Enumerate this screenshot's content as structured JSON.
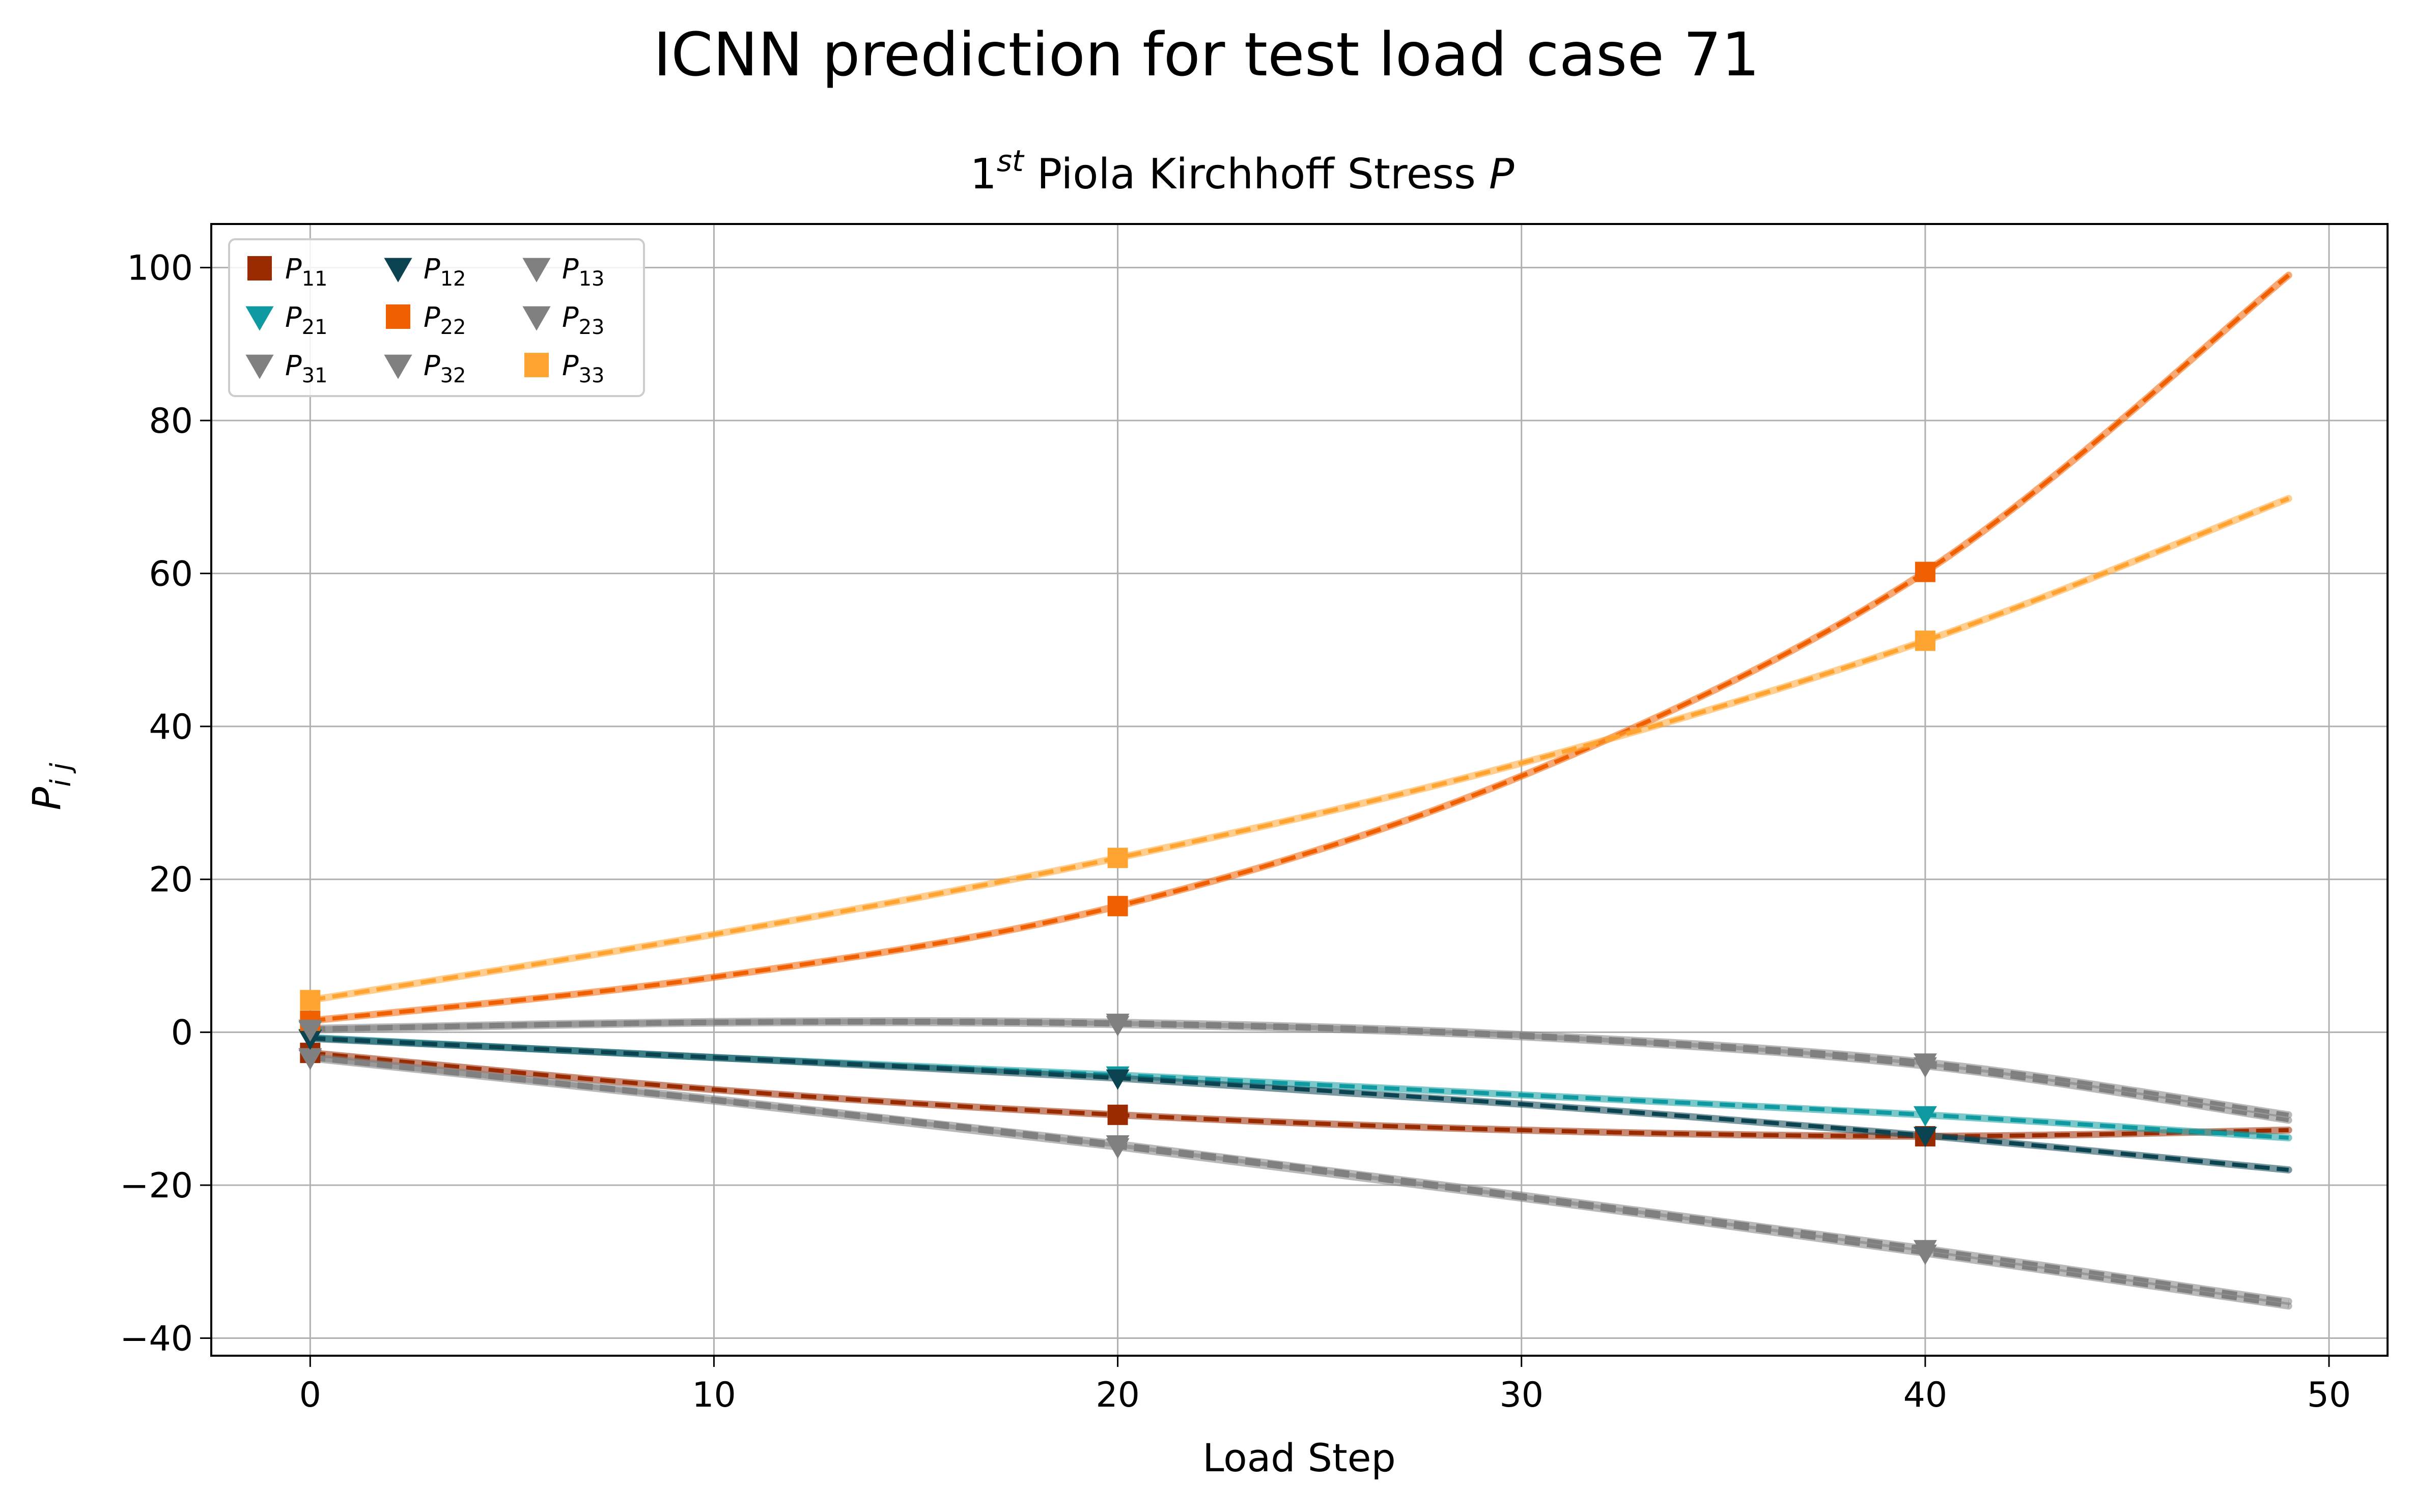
{
  "figure": {
    "suptitle": "ICNN prediction for test load case 71"
  },
  "chart_data": {
    "type": "line",
    "title": {
      "main": "1",
      "sup": "st",
      "rest": " Piola Kirchhoff Stress ",
      "italic": "P"
    },
    "xlabel": "Load Step",
    "ylabel": {
      "main": "P",
      "sub": "i j"
    },
    "xlim": [
      -2.45,
      51.45
    ],
    "ylim": [
      -42.3,
      105.7
    ],
    "xticks": [
      0,
      10,
      20,
      30,
      40,
      50
    ],
    "yticks": [
      -40,
      -20,
      0,
      20,
      40,
      60,
      80,
      100
    ],
    "grid": true,
    "legend": {
      "placement": "top-left",
      "columns": 3
    },
    "marker_steps": [
      0,
      20,
      40
    ],
    "series": [
      {
        "name": "P11",
        "base": "P",
        "sub": "11",
        "color": "#9a2a00",
        "marker": "square",
        "points": [
          [
            0,
            -2.7
          ],
          [
            10,
            -7.5
          ],
          [
            20,
            -10.8
          ],
          [
            30,
            -12.8
          ],
          [
            40,
            -13.6
          ],
          [
            49,
            -12.8
          ]
        ]
      },
      {
        "name": "P21",
        "base": "P",
        "sub": "21",
        "color": "#0e9aa0",
        "marker": "triangle-down",
        "points": [
          [
            0,
            -0.7
          ],
          [
            10,
            -3.3
          ],
          [
            20,
            -5.6
          ],
          [
            30,
            -8.2
          ],
          [
            40,
            -10.8
          ],
          [
            49,
            -13.8
          ]
        ]
      },
      {
        "name": "P31",
        "base": "P",
        "sub": "31",
        "color": "#808080",
        "marker": "triangle-down",
        "points": [
          [
            0,
            -3.2
          ],
          [
            10,
            -8.7
          ],
          [
            20,
            -14.6
          ],
          [
            30,
            -21.3
          ],
          [
            40,
            -28.3
          ],
          [
            49,
            -35.2
          ]
        ]
      },
      {
        "name": "P12",
        "base": "P",
        "sub": "12",
        "color": "#0b4350",
        "marker": "triangle-down",
        "points": [
          [
            0,
            -0.8
          ],
          [
            10,
            -3.3
          ],
          [
            20,
            -6.0
          ],
          [
            30,
            -9.4
          ],
          [
            40,
            -13.5
          ],
          [
            49,
            -18.0
          ]
        ]
      },
      {
        "name": "P22",
        "base": "P",
        "sub": "22",
        "color": "#f06000",
        "marker": "square",
        "points": [
          [
            0,
            1.5
          ],
          [
            10,
            7.2
          ],
          [
            20,
            16.5
          ],
          [
            30,
            33.5
          ],
          [
            40,
            60.2
          ],
          [
            49,
            99.0
          ]
        ]
      },
      {
        "name": "P32",
        "base": "P",
        "sub": "32",
        "color": "#808080",
        "marker": "triangle-down",
        "points": [
          [
            0,
            -3.4
          ],
          [
            10,
            -9.0
          ],
          [
            20,
            -15.0
          ],
          [
            30,
            -21.7
          ],
          [
            40,
            -28.9
          ],
          [
            49,
            -35.8
          ]
        ]
      },
      {
        "name": "P13",
        "base": "P",
        "sub": "13",
        "color": "#808080",
        "marker": "triangle-down",
        "points": [
          [
            0,
            0.5
          ],
          [
            10,
            1.4
          ],
          [
            20,
            1.3
          ],
          [
            30,
            -0.3
          ],
          [
            40,
            -3.9
          ],
          [
            49,
            -10.8
          ]
        ]
      },
      {
        "name": "P23",
        "base": "P",
        "sub": "23",
        "color": "#808080",
        "marker": "triangle-down",
        "points": [
          [
            0,
            0.3
          ],
          [
            10,
            1.2
          ],
          [
            20,
            1.0
          ],
          [
            30,
            -0.6
          ],
          [
            40,
            -4.4
          ],
          [
            49,
            -11.5
          ]
        ]
      },
      {
        "name": "P33",
        "base": "P",
        "sub": "33",
        "color": "#ffa431",
        "marker": "square",
        "points": [
          [
            0,
            4.2
          ],
          [
            10,
            12.8
          ],
          [
            20,
            22.8
          ],
          [
            30,
            35.2
          ],
          [
            40,
            51.2
          ],
          [
            49,
            69.8
          ]
        ]
      }
    ]
  }
}
